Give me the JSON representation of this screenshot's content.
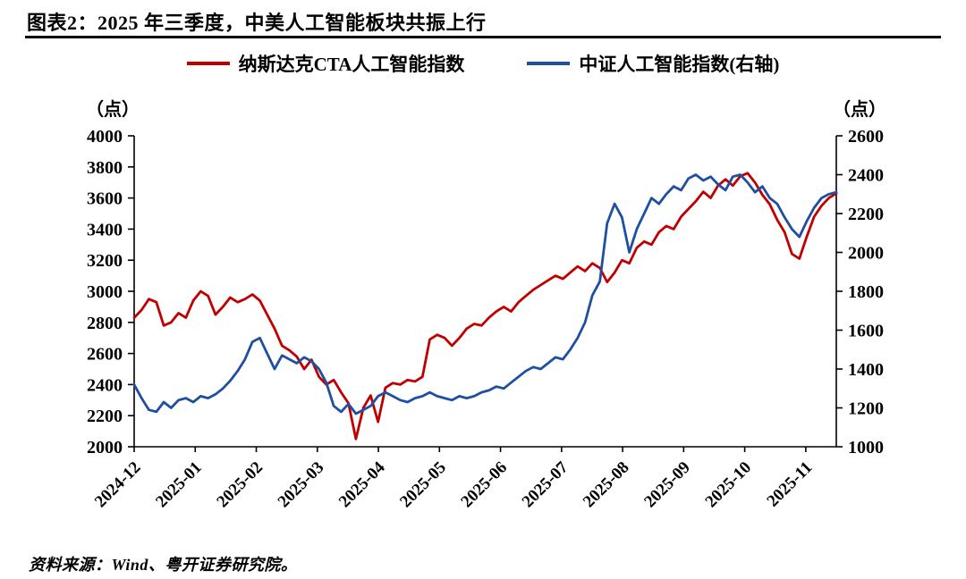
{
  "header": {
    "title": "图表2：2025 年三季度，中美人工智能板块共振上行"
  },
  "footer": {
    "source": "资料来源：Wind、粤开证券研究院。"
  },
  "chart_data": {
    "type": "line",
    "title": "图表2：2025 年三季度，中美人工智能板块共振上行",
    "x_tick_labels": [
      "2024-12",
      "2025-01",
      "2025-02",
      "2025-03",
      "2025-04",
      "2025-05",
      "2025-06",
      "2025-07",
      "2025-08",
      "2025-09",
      "2025-10",
      "2025-11"
    ],
    "x_range_months": [
      0,
      11.5
    ],
    "left_axis": {
      "unit": "（点）",
      "min": 2000,
      "max": 4000,
      "tick_step": 200
    },
    "right_axis": {
      "unit": "（点）",
      "min": 1000,
      "max": 2600,
      "tick_step": 200
    },
    "grid": false,
    "legend_position": "top-center",
    "series": [
      {
        "name": "纳斯达克CTA人工智能指数",
        "axis": "left",
        "color": "#C00000",
        "values": [
          2830,
          2880,
          2950,
          2930,
          2780,
          2800,
          2860,
          2830,
          2940,
          3000,
          2970,
          2850,
          2900,
          2960,
          2930,
          2950,
          2980,
          2940,
          2850,
          2760,
          2650,
          2620,
          2580,
          2500,
          2560,
          2450,
          2400,
          2430,
          2350,
          2280,
          2050,
          2250,
          2330,
          2160,
          2380,
          2410,
          2400,
          2430,
          2420,
          2450,
          2690,
          2720,
          2700,
          2650,
          2700,
          2760,
          2790,
          2780,
          2830,
          2870,
          2900,
          2870,
          2930,
          2970,
          3010,
          3040,
          3070,
          3100,
          3080,
          3120,
          3160,
          3130,
          3180,
          3150,
          3060,
          3120,
          3200,
          3180,
          3280,
          3320,
          3300,
          3380,
          3420,
          3400,
          3480,
          3530,
          3580,
          3640,
          3600,
          3680,
          3720,
          3680,
          3740,
          3760,
          3700,
          3620,
          3560,
          3460,
          3380,
          3240,
          3210,
          3350,
          3480,
          3550,
          3600,
          3630
        ]
      },
      {
        "name": "中证人工智能指数(右轴)",
        "axis": "right",
        "color": "#1F4FA0",
        "values": [
          1320,
          1250,
          1190,
          1180,
          1230,
          1200,
          1240,
          1250,
          1230,
          1260,
          1250,
          1270,
          1300,
          1340,
          1390,
          1450,
          1540,
          1560,
          1480,
          1400,
          1470,
          1450,
          1430,
          1460,
          1440,
          1400,
          1330,
          1210,
          1180,
          1220,
          1170,
          1190,
          1210,
          1260,
          1280,
          1260,
          1240,
          1230,
          1250,
          1260,
          1280,
          1260,
          1250,
          1240,
          1260,
          1250,
          1260,
          1280,
          1290,
          1310,
          1300,
          1330,
          1360,
          1390,
          1410,
          1400,
          1430,
          1460,
          1450,
          1500,
          1560,
          1640,
          1780,
          1850,
          2150,
          2250,
          2180,
          2000,
          2120,
          2200,
          2280,
          2250,
          2300,
          2340,
          2320,
          2380,
          2400,
          2370,
          2390,
          2350,
          2320,
          2390,
          2400,
          2360,
          2310,
          2340,
          2280,
          2250,
          2180,
          2120,
          2080,
          2160,
          2230,
          2280,
          2300,
          2310
        ]
      }
    ]
  }
}
